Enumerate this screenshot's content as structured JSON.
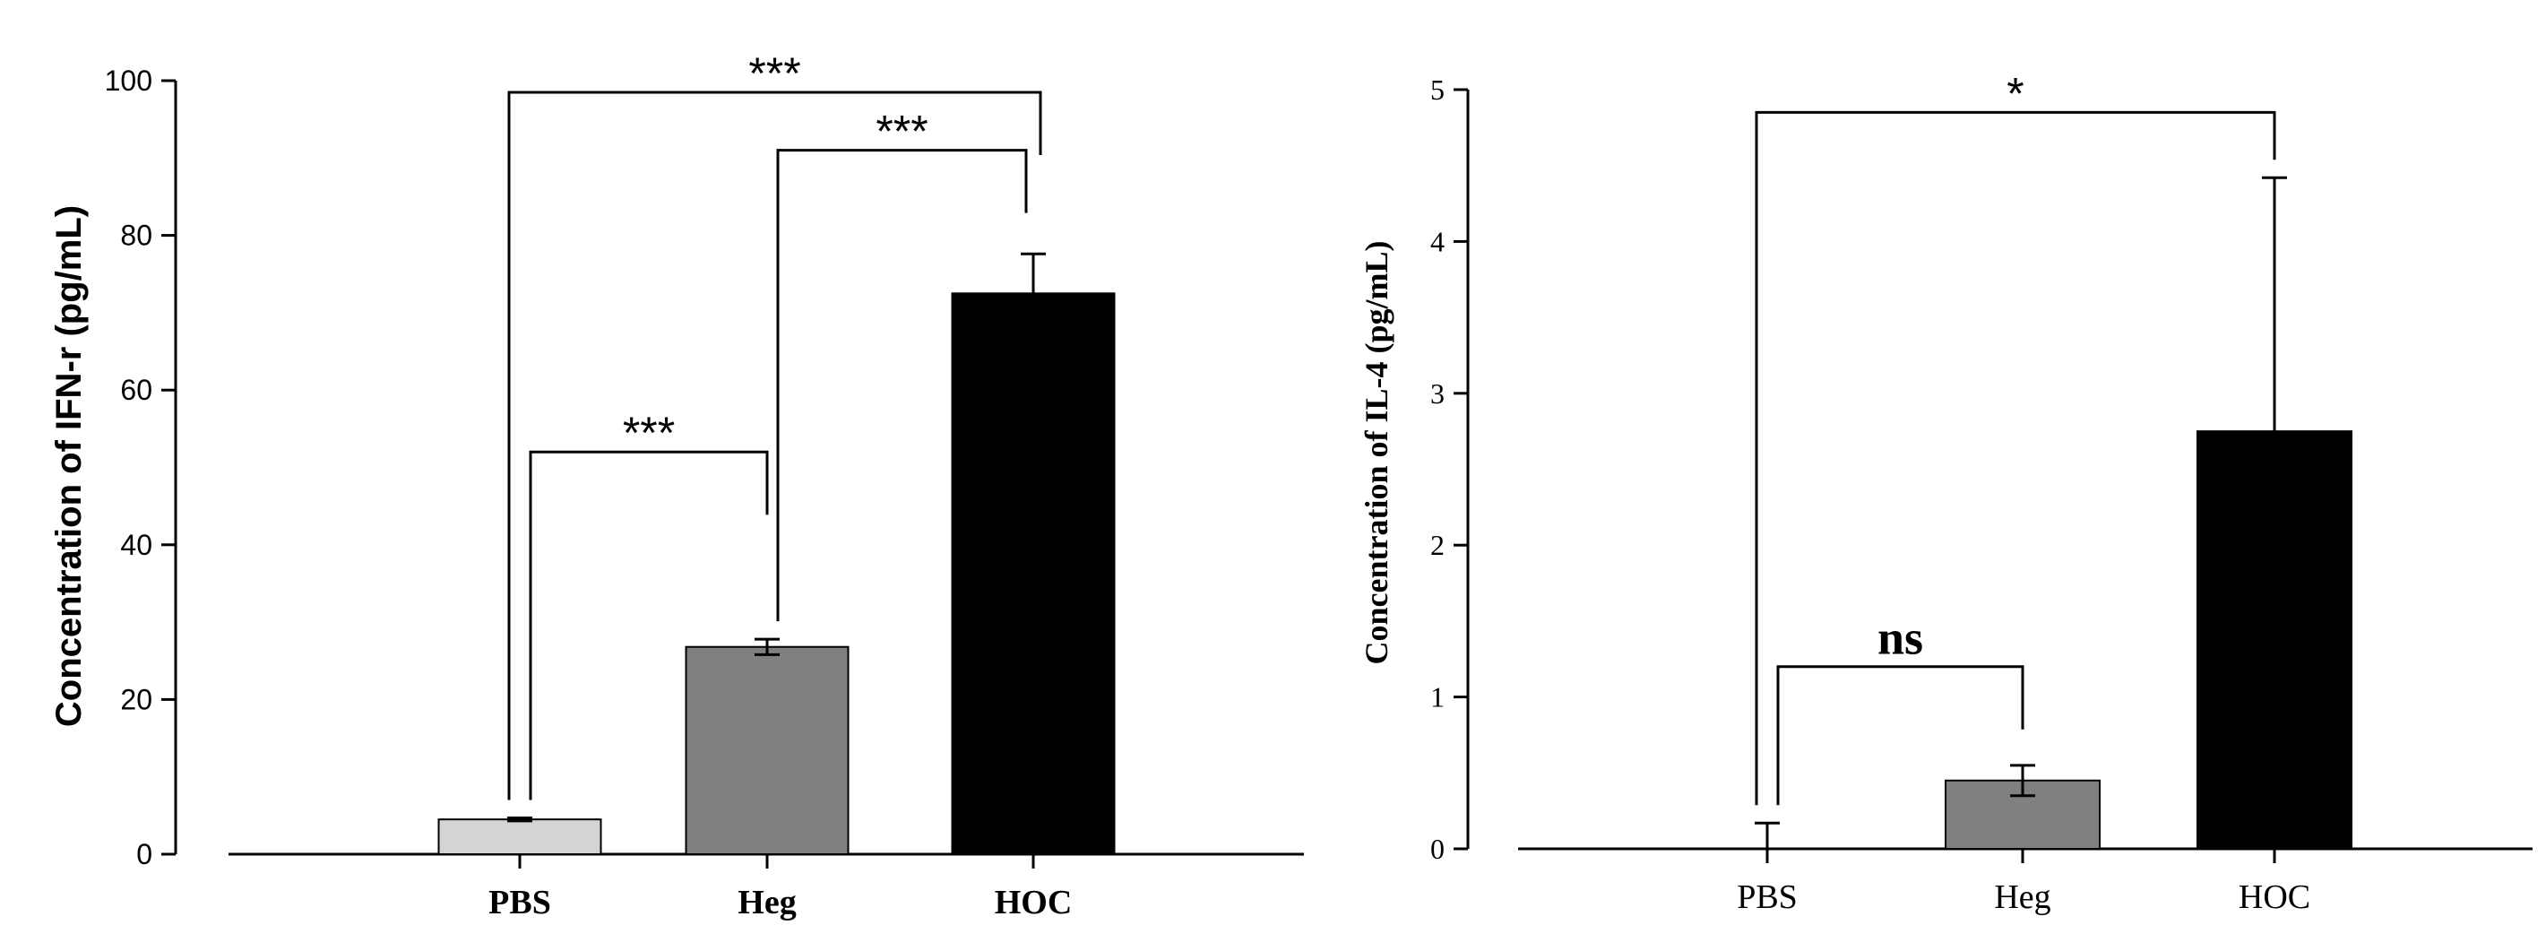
{
  "chart_data": [
    {
      "type": "bar",
      "title": "",
      "xlabel": "",
      "ylabel": "Concentration of IFN-r (pg/mL)",
      "ylim": [
        0,
        100
      ],
      "yticks": [
        0,
        20,
        40,
        60,
        80,
        100
      ],
      "grid": false,
      "categories": [
        "PBS",
        "Heg",
        "HOC"
      ],
      "values": [
        4.5,
        26.8,
        72.5
      ],
      "errors": [
        0.2,
        1.0,
        5.1
      ],
      "bar_colors": [
        "#d4d4d4",
        "#808080",
        "#000000"
      ],
      "significance": [
        {
          "from": 0,
          "to": 1,
          "label": "***",
          "y": 52
        },
        {
          "from": 1,
          "to": 2,
          "label": "***",
          "y": 91
        },
        {
          "from": 0,
          "to": 2,
          "label": "***",
          "y": 98.5
        }
      ]
    },
    {
      "type": "bar",
      "title": "",
      "xlabel": "",
      "ylabel": "Concentration of IL-4 (pg/mL)",
      "ylim": [
        0,
        5
      ],
      "yticks": [
        0,
        1,
        2,
        3,
        4,
        5
      ],
      "grid": false,
      "categories": [
        "PBS",
        "Heg",
        "HOC"
      ],
      "values": [
        0,
        0.45,
        2.75
      ],
      "errors": [
        0.17,
        0.1,
        1.67
      ],
      "bar_colors": [
        "#d4d4d4",
        "#808080",
        "#000000"
      ],
      "significance": [
        {
          "from": 0,
          "to": 1,
          "label": "ns",
          "y": 1.2
        },
        {
          "from": 0,
          "to": 2,
          "label": "*",
          "y": 4.85
        }
      ]
    }
  ]
}
